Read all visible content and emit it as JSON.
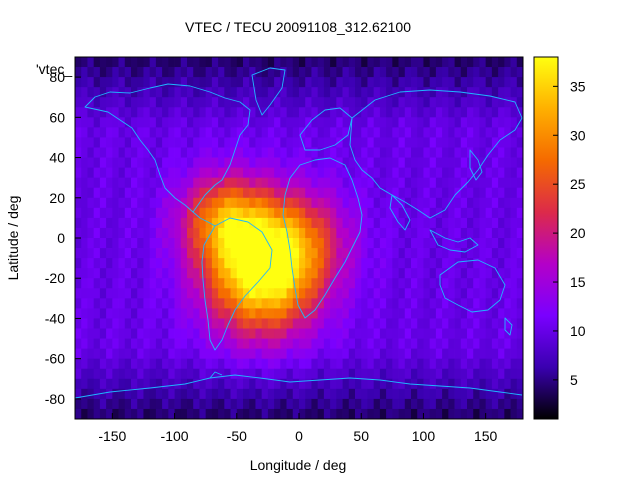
{
  "chart_data": {
    "type": "heatmap",
    "title": "VTEC / TECU 20091108_312.62100",
    "xlabel": "Longitude / deg",
    "ylabel": "Latitude / deg",
    "legend_key": "'vtec_",
    "xlim": [
      -180,
      180
    ],
    "ylim": [
      -90,
      90
    ],
    "xticks": [
      -150,
      -100,
      -50,
      0,
      50,
      100,
      150
    ],
    "yticks": [
      -80,
      -60,
      -40,
      -20,
      0,
      20,
      40,
      60,
      80
    ],
    "colorbar": {
      "min": 1,
      "max": 38,
      "ticks": [
        5,
        10,
        15,
        20,
        25,
        30,
        35
      ],
      "palette": [
        "#000000",
        "#3a00b0",
        "#7a00ff",
        "#b400c8",
        "#dc2a4a",
        "#f56a00",
        "#ffb000",
        "#ffff10"
      ]
    },
    "grid_resolution_deg": {
      "lon": 5,
      "lat": 5
    },
    "field_model": {
      "background_tecu": 10,
      "peak": {
        "lon": -30,
        "lat": -18,
        "vtec_tecu": 38
      },
      "secondary_peak": {
        "lon": -60,
        "lat": 10,
        "vtec_tecu": 32
      },
      "tertiary_peak": {
        "lon": 0,
        "lat": 0,
        "vtec_tecu": 30
      },
      "low_polar_tecu": 4
    },
    "overlay": "coastlines"
  },
  "colors": {
    "coastline": "#1fb6ff",
    "axis": "#000000",
    "background": "#ffffff"
  }
}
